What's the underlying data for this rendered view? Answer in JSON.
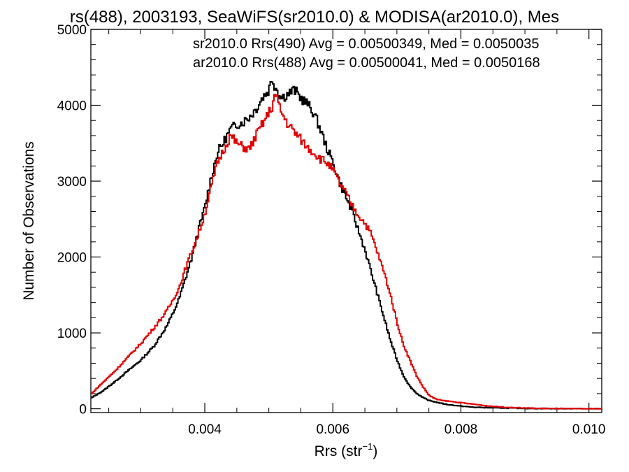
{
  "chart_data": {
    "type": "line",
    "title": "rs(488), 2003193, SeaWiFS(sr2010.0) & MODISA(ar2010.0), Mes",
    "xlabel": "Rrs (str",
    "xlabel_sup": "−1",
    "xlabel_end": ")",
    "ylabel": "Number of Observations",
    "xlim": [
      0.00222,
      0.0102
    ],
    "ylim": [
      -50,
      5000
    ],
    "x_ticks": [
      0.004,
      0.006,
      0.008,
      0.01
    ],
    "x_tick_labels": [
      "0.004",
      "0.006",
      "0.008",
      "0.010"
    ],
    "y_ticks": [
      0,
      1000,
      2000,
      3000,
      4000,
      5000
    ],
    "y_tick_labels": [
      "0",
      "1000",
      "2000",
      "3000",
      "4000",
      "5000"
    ],
    "grid": false,
    "legend_position": "top-right",
    "legend": [
      {
        "text": "sr2010.0 Rrs(490) Avg = 0.00500349, Med = 0.0050035",
        "color": "#000000"
      },
      {
        "text": "ar2010.0 Rrs(488) Avg = 0.00500041, Med = 0.0050168",
        "color": "#e00000"
      }
    ],
    "series": [
      {
        "color": "#000000",
        "x": [
          0.00222,
          0.0024,
          0.0026,
          0.0028,
          0.003,
          0.0032,
          0.0034,
          0.0035,
          0.0036,
          0.0037,
          0.0038,
          0.0039,
          0.004,
          0.0041,
          0.0042,
          0.0043,
          0.0044,
          0.0045,
          0.0046,
          0.0047,
          0.0048,
          0.0049,
          0.005,
          0.00505,
          0.0051,
          0.0052,
          0.0053,
          0.0054,
          0.0055,
          0.0056,
          0.0057,
          0.0058,
          0.0059,
          0.006,
          0.0061,
          0.0062,
          0.0063,
          0.0064,
          0.0065,
          0.0066,
          0.0067,
          0.0068,
          0.0069,
          0.007,
          0.0071,
          0.0072,
          0.0073,
          0.0074,
          0.0075,
          0.0076,
          0.0077,
          0.0078,
          0.008,
          0.0082,
          0.0084,
          0.0086,
          0.0088,
          0.009,
          0.0092,
          0.0094,
          0.0096,
          0.0098,
          0.01,
          0.0102
        ],
        "y": [
          140,
          230,
          360,
          500,
          640,
          820,
          1080,
          1250,
          1450,
          1720,
          2000,
          2350,
          2650,
          3050,
          3380,
          3520,
          3680,
          3750,
          3780,
          3850,
          3950,
          4100,
          4200,
          4350,
          4250,
          4100,
          4150,
          4200,
          4100,
          4020,
          3900,
          3700,
          3450,
          3250,
          3000,
          2800,
          2600,
          2350,
          2100,
          1800,
          1500,
          1200,
          900,
          650,
          440,
          300,
          210,
          150,
          110,
          90,
          70,
          55,
          35,
          20,
          15,
          10,
          8,
          5,
          3,
          3,
          2,
          1,
          0,
          0
        ]
      },
      {
        "color": "#e00000",
        "x": [
          0.00222,
          0.0024,
          0.0026,
          0.0028,
          0.003,
          0.0032,
          0.0034,
          0.0035,
          0.0036,
          0.0037,
          0.0038,
          0.0039,
          0.004,
          0.0041,
          0.0042,
          0.0043,
          0.0044,
          0.0045,
          0.0046,
          0.0047,
          0.0048,
          0.0049,
          0.005,
          0.00505,
          0.0051,
          0.0052,
          0.0053,
          0.0054,
          0.0055,
          0.0056,
          0.0057,
          0.0058,
          0.0059,
          0.006,
          0.0061,
          0.0062,
          0.0063,
          0.0064,
          0.0065,
          0.0066,
          0.0067,
          0.0068,
          0.0069,
          0.007,
          0.0071,
          0.0072,
          0.0073,
          0.0074,
          0.0075,
          0.0076,
          0.0077,
          0.0078,
          0.008,
          0.0082,
          0.0084,
          0.0086,
          0.0088,
          0.009,
          0.0092,
          0.0094,
          0.0096,
          0.0098,
          0.01,
          0.0102
        ],
        "y": [
          190,
          340,
          500,
          680,
          860,
          1060,
          1280,
          1430,
          1600,
          1850,
          2080,
          2300,
          2570,
          2920,
          3250,
          3420,
          3600,
          3500,
          3450,
          3420,
          3600,
          3750,
          3900,
          3980,
          4150,
          3900,
          3750,
          3650,
          3550,
          3450,
          3380,
          3300,
          3250,
          3150,
          2980,
          2850,
          2680,
          2550,
          2450,
          2300,
          2050,
          1800,
          1500,
          1150,
          850,
          650,
          450,
          300,
          180,
          130,
          110,
          100,
          80,
          60,
          40,
          25,
          15,
          10,
          5,
          3,
          2,
          1,
          0,
          0
        ]
      }
    ]
  }
}
